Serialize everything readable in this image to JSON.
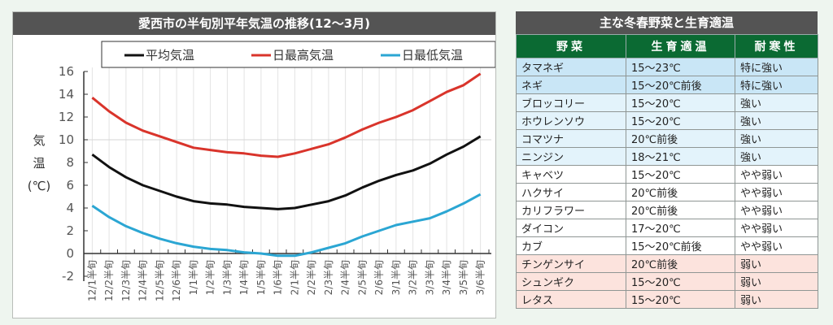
{
  "chart_data": {
    "type": "line",
    "title": "愛西市の半旬別平年気温の推移(12～3月)",
    "ylabel": [
      "気",
      "温",
      "(℃)"
    ],
    "xlabel": "",
    "ylim": [
      -2,
      16
    ],
    "yticks": [
      16,
      14,
      12,
      10,
      8,
      6,
      4,
      2,
      0,
      -2
    ],
    "grid": "vertical lines plus horizontal line at 10",
    "legend_position": "top",
    "categories": [
      "12/1半旬",
      "12/2半旬",
      "12/3半旬",
      "12/4半旬",
      "12/5半旬",
      "12/6半旬",
      "1/1半旬",
      "1/2半旬",
      "1/3半旬",
      "1/4半旬",
      "1/5半旬",
      "1/6半旬",
      "2/1半旬",
      "2/2半旬",
      "2/3半旬",
      "2/4半旬",
      "2/5半旬",
      "2/6半旬",
      "3/1半旬",
      "3/2半旬",
      "3/3半旬",
      "3/4半旬",
      "3/5半旬",
      "3/6半旬"
    ],
    "series": [
      {
        "name": "平均気温",
        "color": "#111111",
        "values": [
          8.7,
          7.6,
          6.7,
          6.0,
          5.5,
          5.0,
          4.6,
          4.4,
          4.3,
          4.1,
          4.0,
          3.9,
          4.0,
          4.3,
          4.6,
          5.1,
          5.8,
          6.4,
          6.9,
          7.3,
          7.9,
          8.7,
          9.4,
          10.3
        ]
      },
      {
        "name": "日最高気温",
        "color": "#d9342b",
        "values": [
          13.7,
          12.5,
          11.5,
          10.8,
          10.3,
          9.8,
          9.3,
          9.1,
          8.9,
          8.8,
          8.6,
          8.5,
          8.8,
          9.2,
          9.6,
          10.2,
          10.9,
          11.5,
          12.0,
          12.6,
          13.4,
          14.2,
          14.8,
          15.8
        ]
      },
      {
        "name": "日最低気温",
        "color": "#2ba6d3",
        "values": [
          4.2,
          3.2,
          2.4,
          1.8,
          1.3,
          0.9,
          0.6,
          0.4,
          0.3,
          0.1,
          0.0,
          -0.2,
          -0.2,
          0.1,
          0.5,
          0.9,
          1.5,
          2.0,
          2.5,
          2.8,
          3.1,
          3.7,
          4.4,
          5.2
        ]
      }
    ]
  },
  "table": {
    "title": "主な冬春野菜と生育適温",
    "headers": [
      "野菜",
      "生育適温",
      "耐寒性"
    ],
    "rows": [
      {
        "name": "タマネギ",
        "temp": "15～23℃",
        "hardiness": "特に強い",
        "class": "strong"
      },
      {
        "name": "ネギ",
        "temp": "15～20℃前後",
        "hardiness": "特に強い",
        "class": "strong"
      },
      {
        "name": "ブロッコリー",
        "temp": "15～20℃",
        "hardiness": "強い",
        "class": "medium"
      },
      {
        "name": "ホウレンソウ",
        "temp": "15～20℃",
        "hardiness": "強い",
        "class": "medium"
      },
      {
        "name": "コマツナ",
        "temp": "20℃前後",
        "hardiness": "強い",
        "class": "medium"
      },
      {
        "name": "ニンジン",
        "temp": "18～21℃",
        "hardiness": "強い",
        "class": "medium"
      },
      {
        "name": "キャベツ",
        "temp": "15～20℃",
        "hardiness": "やや弱い",
        "class": "weakish"
      },
      {
        "name": "ハクサイ",
        "temp": "20℃前後",
        "hardiness": "やや弱い",
        "class": "weakish"
      },
      {
        "name": "カリフラワー",
        "temp": "20℃前後",
        "hardiness": "やや弱い",
        "class": "weakish"
      },
      {
        "name": "ダイコン",
        "temp": "17～20℃",
        "hardiness": "やや弱い",
        "class": "weakish"
      },
      {
        "name": "カブ",
        "temp": "15～20℃前後",
        "hardiness": "やや弱い",
        "class": "weakish"
      },
      {
        "name": "チンゲンサイ",
        "temp": "20℃前後",
        "hardiness": "弱い",
        "class": "weak"
      },
      {
        "name": "シュンギク",
        "temp": "15～20℃",
        "hardiness": "弱い",
        "class": "weak"
      },
      {
        "name": "レタス",
        "temp": "15～20℃",
        "hardiness": "弱い",
        "class": "weak"
      }
    ]
  }
}
